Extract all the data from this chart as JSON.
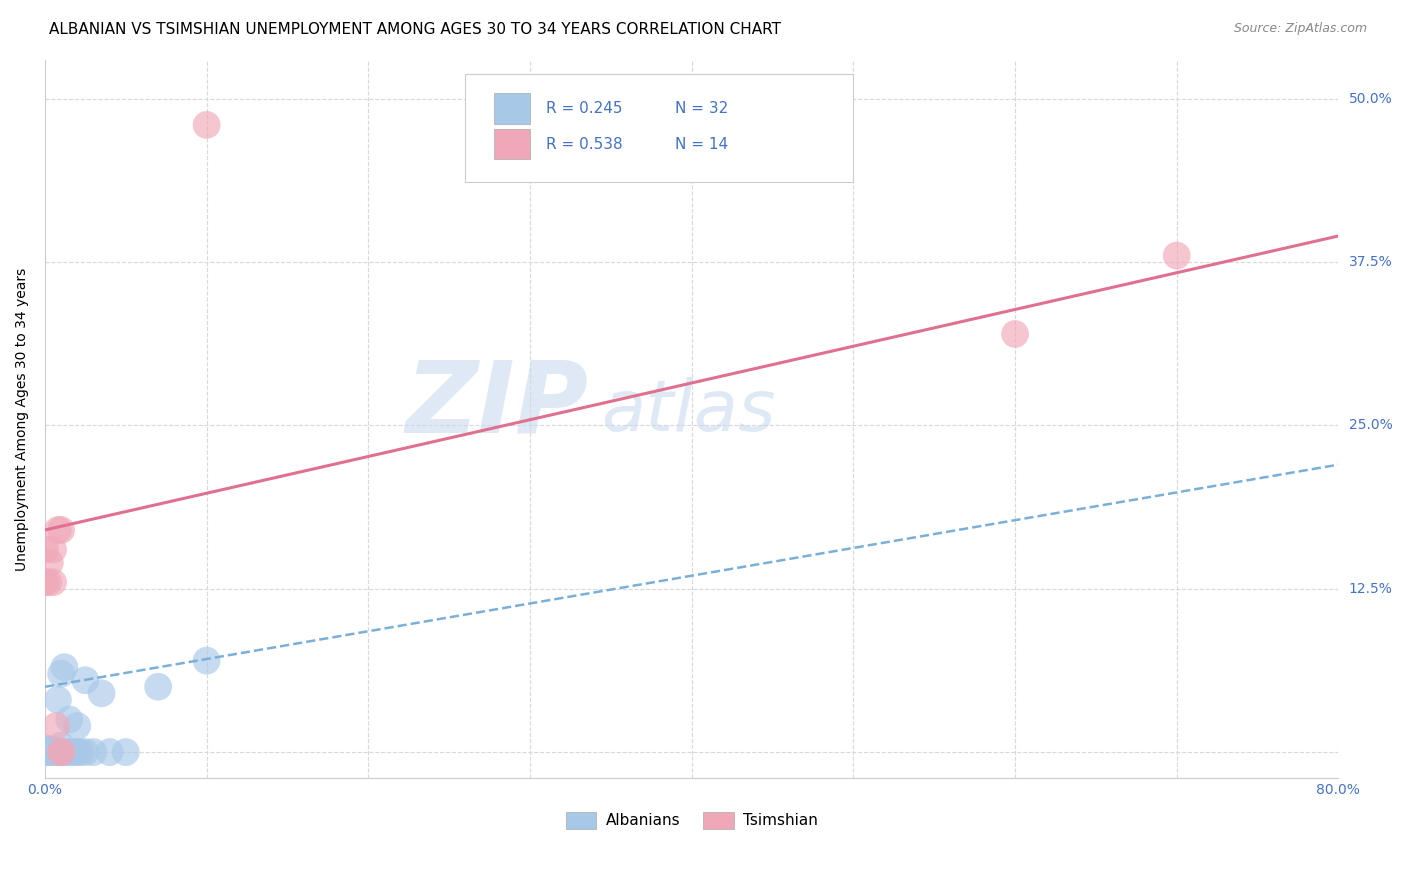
{
  "title": "ALBANIAN VS TSIMSHIAN UNEMPLOYMENT AMONG AGES 30 TO 34 YEARS CORRELATION CHART",
  "source": "Source: ZipAtlas.com",
  "ylabel": "Unemployment Among Ages 30 to 34 years",
  "xlim": [
    0.0,
    0.8
  ],
  "ylim": [
    -0.02,
    0.53
  ],
  "xticks": [
    0.0,
    0.1,
    0.2,
    0.3,
    0.4,
    0.5,
    0.6,
    0.7,
    0.8
  ],
  "ytick_positions": [
    0.0,
    0.125,
    0.25,
    0.375,
    0.5
  ],
  "yticklabels": [
    "",
    "12.5%",
    "25.0%",
    "37.5%",
    "50.0%"
  ],
  "albanian_R": 0.245,
  "albanian_N": 32,
  "tsimshian_R": 0.538,
  "tsimshian_N": 14,
  "albanian_color": "#a8c8e8",
  "albanian_line_color": "#7ab0d8",
  "tsimshian_color": "#f0a8b8",
  "tsimshian_line_color": "#e07090",
  "albanian_x": [
    0.0,
    0.0,
    0.0,
    0.0,
    0.0,
    0.002,
    0.002,
    0.004,
    0.005,
    0.005,
    0.007,
    0.008,
    0.008,
    0.01,
    0.01,
    0.01,
    0.012,
    0.013,
    0.015,
    0.015,
    0.018,
    0.02,
    0.02,
    0.022,
    0.025,
    0.025,
    0.03,
    0.035,
    0.04,
    0.05,
    0.07,
    0.1
  ],
  "albanian_y": [
    0.0,
    0.0,
    0.0,
    0.002,
    0.003,
    0.0,
    0.0,
    0.0,
    0.0,
    0.002,
    0.0,
    0.0,
    0.04,
    0.0,
    0.005,
    0.06,
    0.065,
    0.0,
    0.0,
    0.025,
    0.0,
    0.0,
    0.02,
    0.0,
    0.0,
    0.055,
    0.0,
    0.045,
    0.0,
    0.0,
    0.05,
    0.07
  ],
  "tsimshian_x": [
    0.0,
    0.0,
    0.002,
    0.003,
    0.005,
    0.005,
    0.007,
    0.008,
    0.01,
    0.01,
    0.01,
    0.1,
    0.6,
    0.7
  ],
  "tsimshian_y": [
    0.13,
    0.155,
    0.13,
    0.145,
    0.13,
    0.155,
    0.02,
    0.17,
    0.0,
    0.0,
    0.17,
    0.48,
    0.32,
    0.38
  ],
  "alb_line_x0": 0.0,
  "alb_line_y0": 0.05,
  "alb_line_x1": 0.8,
  "alb_line_y1": 0.22,
  "tsi_line_x0": 0.0,
  "tsi_line_y0": 0.17,
  "tsi_line_x1": 0.8,
  "tsi_line_y1": 0.395,
  "watermark_line1": "ZIP",
  "watermark_line2": "atlas",
  "background_color": "#ffffff",
  "grid_color": "#d8d8d8",
  "tick_color": "#4472c4",
  "title_fontsize": 11,
  "axis_label_fontsize": 10,
  "source_fontsize": 9
}
